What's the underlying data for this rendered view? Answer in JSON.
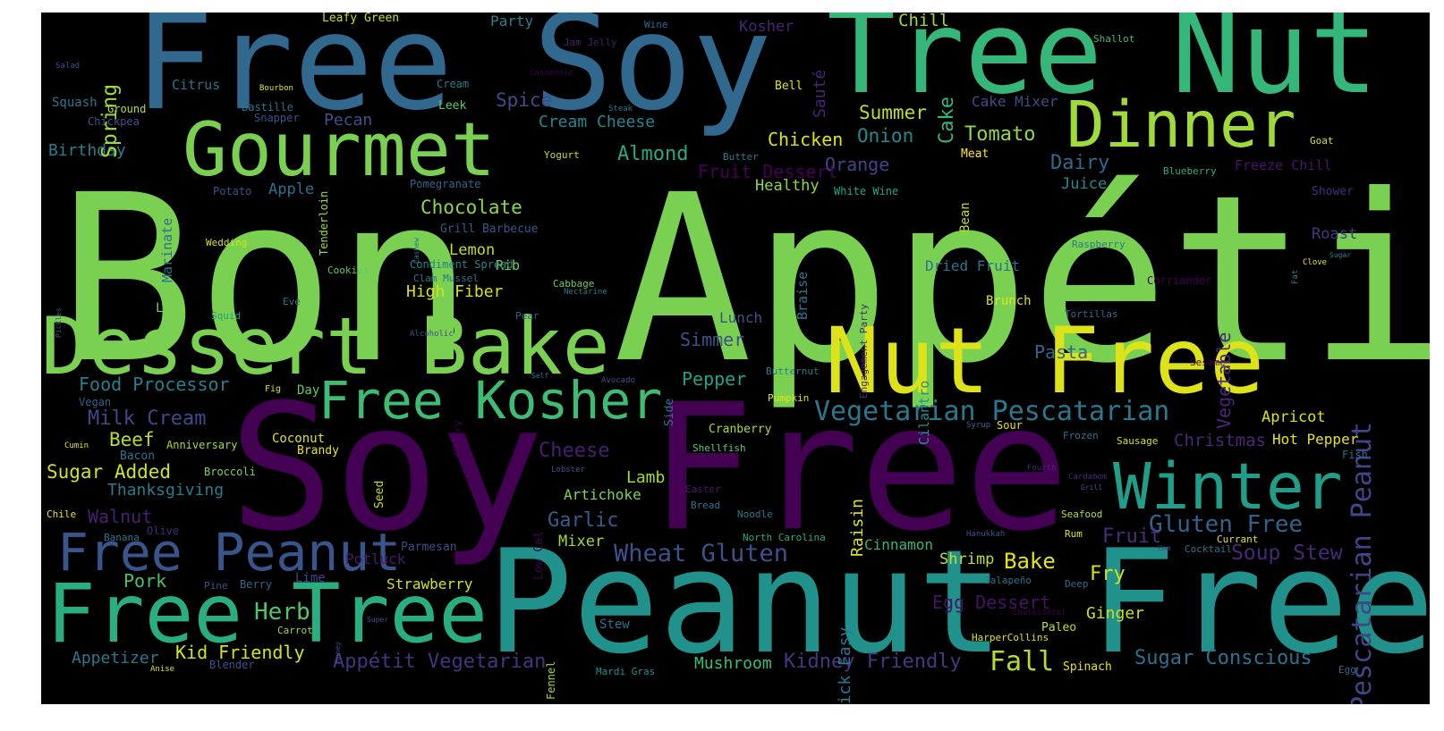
{
  "cloud": {
    "words": [
      {
        "text": "Bon Appétit",
        "color": "#7ad151"
      },
      {
        "text": "Soy Free",
        "color": "#440154"
      },
      {
        "text": "Peanut Free",
        "color": "#21918c"
      },
      {
        "text": "Free Soy",
        "color": "#31688e"
      },
      {
        "text": "Tree Nut",
        "color": "#35b779"
      },
      {
        "text": "Dessert Bake",
        "color": "#7ad151"
      },
      {
        "text": "Nut Free",
        "color": "#dde318"
      },
      {
        "text": "Free Tree",
        "color": "#29af7f"
      },
      {
        "text": "Gourmet",
        "color": "#7ad151"
      },
      {
        "text": "Dinner",
        "color": "#a0da39"
      },
      {
        "text": "Winter",
        "color": "#1f9e89"
      },
      {
        "text": "Free Kosher",
        "color": "#3fbc73"
      },
      {
        "text": "Free Peanut",
        "color": "#39568c"
      },
      {
        "text": "Vegetarian Pescatarian",
        "color": "#2a788e"
      },
      {
        "text": "Gluten Free",
        "color": "#33638d"
      },
      {
        "text": "Wheat Gluten",
        "color": "#3b528b"
      },
      {
        "text": "Soup Stew",
        "color": "#482878"
      },
      {
        "text": "Appétit Vegetarian",
        "color": "#46337e"
      },
      {
        "text": "Sugar Conscious",
        "color": "#2c728e"
      },
      {
        "text": "Kidney Friendly",
        "color": "#453781"
      },
      {
        "text": "Pescatarian Peanut",
        "color": "#404688"
      },
      {
        "text": "Milk Cream",
        "color": "#3e4a89"
      },
      {
        "text": "Food Processor",
        "color": "#277f8e"
      },
      {
        "text": "Fall",
        "color": "#b5de2b"
      },
      {
        "text": "Herb",
        "color": "#52c569"
      },
      {
        "text": "Kid Friendly",
        "color": "#d2e21b"
      },
      {
        "text": "Fry",
        "color": "#d2e21b"
      },
      {
        "text": "Ginger",
        "color": "#c8e020"
      },
      {
        "text": "Bake",
        "color": "#e5e419"
      },
      {
        "text": "Fruit",
        "color": "#472d7b"
      },
      {
        "text": "Garlic",
        "color": "#365d8d"
      },
      {
        "text": "Cheese",
        "color": "#481f70"
      },
      {
        "text": "Egg Dessert",
        "color": "#471365"
      },
      {
        "text": "Chocolate",
        "color": "#8fd744"
      },
      {
        "text": "Almond",
        "color": "#25ab82"
      },
      {
        "text": "Tomato",
        "color": "#93d741"
      },
      {
        "text": "Summer",
        "color": "#bddf26"
      },
      {
        "text": "Chicken",
        "color": "#dde318"
      },
      {
        "text": "Onion",
        "color": "#228c8d"
      },
      {
        "text": "Dairy",
        "color": "#31688e"
      },
      {
        "text": "Orange",
        "color": "#414487"
      },
      {
        "text": "Fruit Dessert",
        "color": "#440154"
      },
      {
        "text": "Healthy",
        "color": "#8fd744"
      },
      {
        "text": "Juice",
        "color": "#228c8d"
      },
      {
        "text": "Spice",
        "color": "#3e4c8a"
      },
      {
        "text": "Cream Cheese",
        "color": "#23898e"
      },
      {
        "text": "Pecan",
        "color": "#3b528b"
      },
      {
        "text": "Birthday",
        "color": "#27808e"
      },
      {
        "text": "Apple",
        "color": "#2d708e"
      },
      {
        "text": "Lemon",
        "color": "#c2df23"
      },
      {
        "text": "Rib",
        "color": "#7ad151"
      },
      {
        "text": "High Fiber",
        "color": "#d8e219"
      },
      {
        "text": "Pepper",
        "color": "#20a386"
      },
      {
        "text": "Simmer",
        "color": "#3b528b"
      },
      {
        "text": "Pasta",
        "color": "#31688e"
      },
      {
        "text": "Beef",
        "color": "#b8de29"
      },
      {
        "text": "Sugar Added",
        "color": "#d2e21b"
      },
      {
        "text": "Thanksgiving",
        "color": "#287c8e"
      },
      {
        "text": "Walnut",
        "color": "#482173"
      },
      {
        "text": "Lamb",
        "color": "#a2da37"
      },
      {
        "text": "Artichoke",
        "color": "#7fd34e"
      },
      {
        "text": "Mixer",
        "color": "#9fda3a"
      },
      {
        "text": "Pork",
        "color": "#4ac16d"
      },
      {
        "text": "Strawberry",
        "color": "#d8e219"
      },
      {
        "text": "Potluck",
        "color": "#481a6c"
      },
      {
        "text": "Shrimp",
        "color": "#c2df23"
      },
      {
        "text": "Cinnamon",
        "color": "#31b57b"
      },
      {
        "text": "Appetizer",
        "color": "#2a788e"
      },
      {
        "text": "Mushroom",
        "color": "#3dbc74"
      },
      {
        "text": "Christmas",
        "color": "#482878"
      },
      {
        "text": "Hot Pepper",
        "color": "#e5e419"
      },
      {
        "text": "Apricot",
        "color": "#d8e219"
      },
      {
        "text": "Roast",
        "color": "#453882"
      },
      {
        "text": "Dried Fruit",
        "color": "#2d718e"
      },
      {
        "text": "Lunch",
        "color": "#3b528b"
      },
      {
        "text": "Brunch",
        "color": "#dde318"
      },
      {
        "text": "Cake Mixer",
        "color": "#3e4c8a"
      },
      {
        "text": "Chill",
        "color": "#a2da37"
      },
      {
        "text": "Kosher",
        "color": "#482475"
      },
      {
        "text": "Party",
        "color": "#26828e"
      },
      {
        "text": "Leafy Green",
        "color": "#c2df23"
      },
      {
        "text": "Citrus",
        "color": "#2d708e"
      },
      {
        "text": "Squash",
        "color": "#2a768e"
      },
      {
        "text": "Ground",
        "color": "#b5de2b"
      },
      {
        "text": "Chickpea",
        "color": "#3b528b"
      },
      {
        "text": "Bastille",
        "color": "#2c738e"
      },
      {
        "text": "Snapper",
        "color": "#3b528b"
      },
      {
        "text": "Cream",
        "color": "#2a788e"
      },
      {
        "text": "Leek",
        "color": "#5ec962"
      },
      {
        "text": "Bell",
        "color": "#dde318"
      },
      {
        "text": "Butter",
        "color": "#2a788e"
      },
      {
        "text": "Meat",
        "color": "#fde725"
      },
      {
        "text": "Blueberry",
        "color": "#27ad81"
      },
      {
        "text": "Freeze Chill",
        "color": "#481668"
      },
      {
        "text": "Goat",
        "color": "#dde318"
      },
      {
        "text": "Shallot",
        "color": "#3dbc74"
      },
      {
        "text": "Wine",
        "color": "#31688e"
      },
      {
        "text": "Jam Jelly",
        "color": "#481f70"
      },
      {
        "text": "Casserole",
        "color": "#440154"
      },
      {
        "text": "Steak",
        "color": "#287d8e"
      },
      {
        "text": "Bourbon",
        "color": "#e5e419"
      },
      {
        "text": "Salad",
        "color": "#3b528b"
      },
      {
        "text": "Yogurt",
        "color": "#c2df23"
      },
      {
        "text": "Pomegranate",
        "color": "#33638d"
      },
      {
        "text": "Grill Barbecue",
        "color": "#39568c"
      },
      {
        "text": "Condiment Spread",
        "color": "#25848e"
      },
      {
        "text": "Clam Mussel",
        "color": "#2a788e"
      },
      {
        "text": "Cookies",
        "color": "#5ec962"
      },
      {
        "text": "Potato",
        "color": "#3b528b"
      },
      {
        "text": "White Wine",
        "color": "#21a585"
      },
      {
        "text": "Wedding",
        "color": "#d8e219"
      },
      {
        "text": "Squid",
        "color": "#1fa188"
      },
      {
        "text": "Eve",
        "color": "#2d708e"
      },
      {
        "text": "Low",
        "color": "#7ad151"
      },
      {
        "text": "Cabbage",
        "color": "#6ccd5a"
      },
      {
        "text": "Nectarine",
        "color": "#2a788e"
      },
      {
        "text": "Pear",
        "color": "#365d8d"
      },
      {
        "text": "Alcoholic",
        "color": "#3b528b"
      },
      {
        "text": "Self",
        "color": "#2a788e"
      },
      {
        "text": "Avocado",
        "color": "#3b528b"
      },
      {
        "text": "Fig",
        "color": "#dde318"
      },
      {
        "text": "Day",
        "color": "#63cb5f"
      },
      {
        "text": "Vegan",
        "color": "#33638d"
      },
      {
        "text": "Cumin",
        "color": "#e5e419"
      },
      {
        "text": "Anniversary",
        "color": "#a8db34"
      },
      {
        "text": "Coconut",
        "color": "#dde318"
      },
      {
        "text": "Brandy",
        "color": "#e5e419"
      },
      {
        "text": "Bacon",
        "color": "#2a788e"
      },
      {
        "text": "Broccoli",
        "color": "#84d44b"
      },
      {
        "text": "Chile",
        "color": "#e5e419"
      },
      {
        "text": "Banana",
        "color": "#2a788e"
      },
      {
        "text": "Olive",
        "color": "#482878"
      },
      {
        "text": "Parmesan",
        "color": "#3e4a89"
      },
      {
        "text": "Pine",
        "color": "#3b528b"
      },
      {
        "text": "Berry",
        "color": "#31688e"
      },
      {
        "text": "Lime",
        "color": "#414487"
      },
      {
        "text": "Carrot",
        "color": "#a2da37"
      },
      {
        "text": "Anise",
        "color": "#dde318"
      },
      {
        "text": "Blender",
        "color": "#3b528b"
      },
      {
        "text": "Stew",
        "color": "#2c728e"
      },
      {
        "text": "Mardi Gras",
        "color": "#21918c"
      },
      {
        "text": "Super",
        "color": "#3b528b"
      },
      {
        "text": "Cranberry",
        "color": "#a8db34"
      },
      {
        "text": "Shellfish",
        "color": "#5ec962"
      },
      {
        "text": "Lobster",
        "color": "#3b528b"
      },
      {
        "text": "Easter",
        "color": "#481668"
      },
      {
        "text": "Bread",
        "color": "#2c728e"
      },
      {
        "text": "Noodle",
        "color": "#2a788e"
      },
      {
        "text": "Butternut",
        "color": "#2a788e"
      },
      {
        "text": "Pumpkin",
        "color": "#dde318"
      },
      {
        "text": "North Carolina",
        "color": "#25ab82"
      },
      {
        "text": "Syrup",
        "color": "#33638d"
      },
      {
        "text": "Sour",
        "color": "#e5e419"
      },
      {
        "text": "Frozen",
        "color": "#2a788e"
      },
      {
        "text": "Fourth",
        "color": "#482475"
      },
      {
        "text": "Sausage",
        "color": "#d8e219"
      },
      {
        "text": "Cardamom",
        "color": "#482878"
      },
      {
        "text": "Grill",
        "color": "#3b528b"
      },
      {
        "text": "Fish",
        "color": "#2c728e"
      },
      {
        "text": "Hanukkah",
        "color": "#3b528b"
      },
      {
        "text": "Rum",
        "color": "#dde318"
      },
      {
        "text": "Seafood",
        "color": "#b5de2b"
      },
      {
        "text": "Currant",
        "color": "#e5e419"
      },
      {
        "text": "Ham",
        "color": "#3b528b"
      },
      {
        "text": "Cocktail",
        "color": "#2c728e"
      },
      {
        "text": "Jalapeño",
        "color": "#2c728e"
      },
      {
        "text": "Deep",
        "color": "#31688e"
      },
      {
        "text": "Cholesterol",
        "color": "#440154"
      },
      {
        "text": "Paleo",
        "color": "#c2df23"
      },
      {
        "text": "HarperCollins",
        "color": "#dde318"
      },
      {
        "text": "Spinach",
        "color": "#e5e419"
      },
      {
        "text": "Egg",
        "color": "#31688e"
      },
      {
        "text": "Tortillas",
        "color": "#31688e"
      },
      {
        "text": "Corriander",
        "color": "#440154"
      },
      {
        "text": "Sesame",
        "color": "#440154"
      },
      {
        "text": "Raspberry",
        "color": "#2a788e"
      },
      {
        "text": "Clove",
        "color": "#e5e419"
      },
      {
        "text": "Sugar",
        "color": "#26828e"
      },
      {
        "text": "Shower",
        "color": "#472d7b"
      },
      {
        "text": "Spring",
        "color": "#a0da39"
      },
      {
        "text": "Marinate",
        "color": "#2d708e"
      },
      {
        "text": "Tenderloin",
        "color": "#a2da37"
      },
      {
        "text": "Cashew",
        "color": "#2a788e"
      },
      {
        "text": "Pickles",
        "color": "#3b528b"
      },
      {
        "text": "Sauté",
        "color": "#482475"
      },
      {
        "text": "Cake",
        "color": "#32b67a"
      },
      {
        "text": "Bean",
        "color": "#c2df23"
      },
      {
        "text": "Braise",
        "color": "#2a788e"
      },
      {
        "text": "Engagement Party",
        "color": "#482878"
      },
      {
        "text": "Vegetable",
        "color": "#482878"
      },
      {
        "text": "Raisin",
        "color": "#dde318"
      },
      {
        "text": "Quick Easy",
        "color": "#2a788e"
      },
      {
        "text": "Cilantro",
        "color": "#21918c"
      },
      {
        "text": "Side",
        "color": "#2a788e"
      },
      {
        "text": "Celery",
        "color": "#440154"
      },
      {
        "text": "Low Cal",
        "color": "#440154"
      },
      {
        "text": "Seed",
        "color": "#c2df23"
      },
      {
        "text": "Fennel",
        "color": "#a2da37"
      },
      {
        "text": "Honey",
        "color": "#3b528b"
      },
      {
        "text": "Fat",
        "color": "#2c728e"
      }
    ]
  }
}
